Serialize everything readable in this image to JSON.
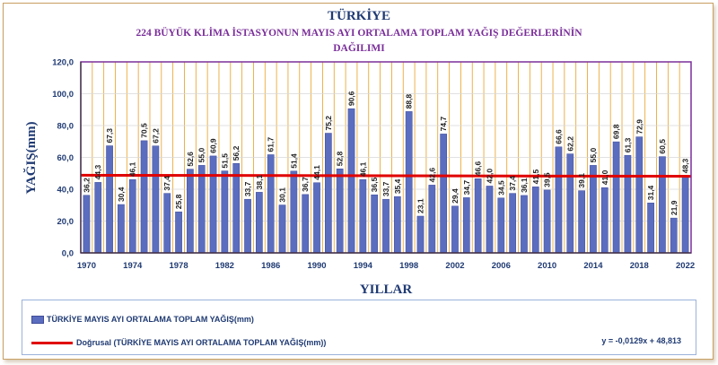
{
  "chart_data": {
    "type": "bar",
    "title": "TÜRKİYE",
    "subtitle_line1": "224 BÜYÜK KLİMA İSTASYONUN MAYIS  AYI  ORTALAMA TOPLAM  YAĞIŞ DEĞERLERİNİN",
    "subtitle_line2": "DAĞILIMI",
    "xlabel": "YILLAR",
    "ylabel": "YAĞIŞ(mm)",
    "ylim": [
      0,
      120
    ],
    "yticks": [
      "0,0",
      "20,0",
      "40,0",
      "60,0",
      "80,0",
      "100,0",
      "120,0"
    ],
    "xtick_labels": [
      "1970",
      "1974",
      "1978",
      "1982",
      "1986",
      "1990",
      "1994",
      "1998",
      "2002",
      "2006",
      "2010",
      "2014",
      "2018",
      "2022"
    ],
    "grid": true,
    "legend_placement": "bottom",
    "categories": [
      "1970",
      "1971",
      "1972",
      "1973",
      "1974",
      "1975",
      "1976",
      "1977",
      "1978",
      "1979",
      "1980",
      "1981",
      "1982",
      "1983",
      "1984",
      "1985",
      "1986",
      "1987",
      "1988",
      "1989",
      "1990",
      "1991",
      "1992",
      "1993",
      "1994",
      "1995",
      "1996",
      "1997",
      "1998",
      "1999",
      "2000",
      "2001",
      "2002",
      "2003",
      "2004",
      "2005",
      "2006",
      "2007",
      "2008",
      "2009",
      "2010",
      "2011",
      "2012",
      "2013",
      "2014",
      "2015",
      "2016",
      "2017",
      "2018",
      "2019",
      "2020",
      "2021",
      "2022"
    ],
    "series": [
      {
        "name": "TÜRKİYE MAYIS AYI ORTALAMA TOPLAM YAĞIŞ(mm)",
        "type": "bar",
        "values": [
          36.2,
          44.3,
          67.3,
          30.4,
          46.1,
          70.5,
          67.2,
          37.4,
          25.8,
          52.6,
          55.0,
          60.9,
          51.5,
          56.2,
          33.7,
          38.1,
          61.7,
          30.1,
          51.4,
          36.7,
          44.1,
          75.2,
          52.8,
          90.6,
          46.1,
          36.5,
          33.7,
          35.4,
          88.8,
          23.1,
          42.6,
          74.7,
          29.4,
          34.7,
          46.6,
          42.0,
          34.5,
          37.4,
          36.1,
          41.5,
          39.5,
          66.6,
          62.2,
          39.1,
          55.0,
          41.0,
          69.8,
          61.3,
          72.9,
          31.4,
          60.5,
          21.9,
          48.3
        ],
        "value_labels": [
          "36,2",
          "44,3",
          "67,3",
          "30,4",
          "46,1",
          "70,5",
          "67,2",
          "37,4",
          "25,8",
          "52,6",
          "55,0",
          "60,9",
          "51,5",
          "56,2",
          "33,7",
          "38,1",
          "61,7",
          "30,1",
          "51,4",
          "36,7",
          "44,1",
          "75,2",
          "52,8",
          "90,6",
          "46,1",
          "36,5",
          "33,7",
          "35,4",
          "88,8",
          "23,1",
          "42,6",
          "74,7",
          "29,4",
          "34,7",
          "46,6",
          "42,0",
          "34,5",
          "37,4",
          "36,1",
          "41,5",
          "39,5",
          "66,6",
          "62,2",
          "39,1",
          "55,0",
          "41,0",
          "69,8",
          "61,3",
          "72,9",
          "31,4",
          "60,5",
          "21,9",
          "48,3"
        ]
      },
      {
        "name": "Doğrusal (TÜRKİYE MAYIS AYI  ORTALAMA TOPLAM YAĞIŞ(mm))",
        "type": "trendline",
        "equation": "y = -0,0129x + 48,813",
        "slope": -0.0129,
        "intercept": 48.813
      }
    ],
    "colors": {
      "bar_fill": "#5b6dbf",
      "bar_stroke": "#3f4c9a",
      "trend_line": "#e00000",
      "grid_vertical": "#e8a020",
      "grid_horizontal": "#d7d7d7",
      "plot_border": "#7a2e9a",
      "text": "#1f3a73",
      "subtitle": "#7a2e9a"
    }
  }
}
